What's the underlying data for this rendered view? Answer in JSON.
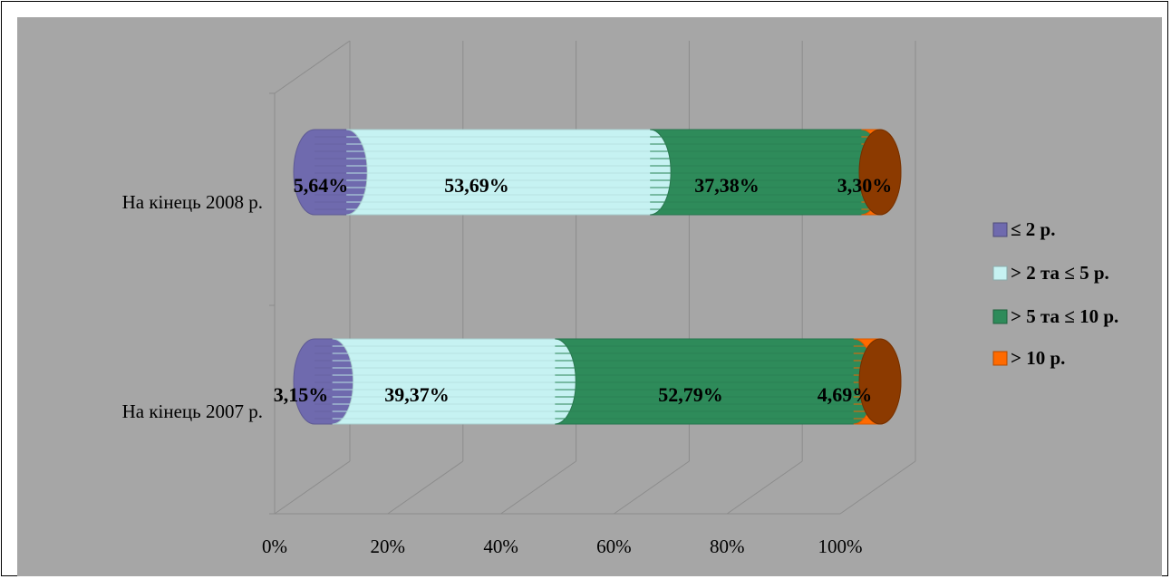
{
  "chart_data": {
    "type": "bar",
    "orientation": "horizontal",
    "stacked": "percent",
    "three_d": true,
    "background": "#a6a6a6",
    "categories": [
      "На кінець 2008 р.",
      "На кінець 2007 р."
    ],
    "series": [
      {
        "name": "≤ 2 р.",
        "color": "#6f6aae",
        "values": [
          5.64,
          3.15
        ],
        "labels": [
          "5,64%",
          "3,15%"
        ]
      },
      {
        "name": "> 2 та ≤ 5 р.",
        "color": "#c6f2f2",
        "values": [
          53.69,
          39.37
        ],
        "labels": [
          "53,69%",
          "39,37%"
        ]
      },
      {
        "name": "> 5 та ≤ 10 р.",
        "color": "#2e8b5a",
        "values": [
          37.38,
          52.79
        ],
        "labels": [
          "37,38%",
          "52,79%"
        ]
      },
      {
        "name": "> 10 р.",
        "color": "#ff6a00",
        "values": [
          3.3,
          4.69
        ],
        "labels": [
          "3,30%",
          "4,69%"
        ]
      }
    ],
    "x_ticks": [
      "0%",
      "20%",
      "40%",
      "60%",
      "80%",
      "100%"
    ],
    "xlim": [
      0,
      100
    ],
    "grid": true,
    "legend_position": "right"
  }
}
